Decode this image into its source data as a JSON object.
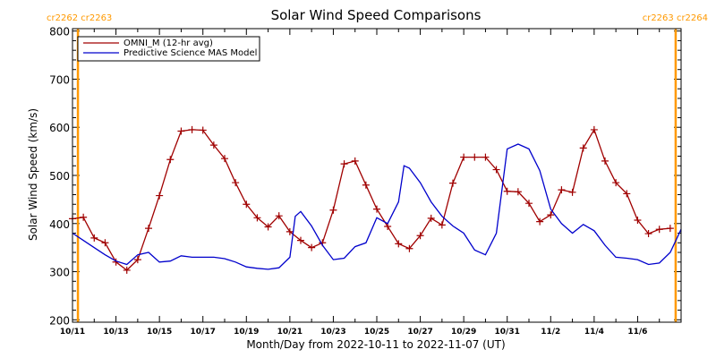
{
  "chart_data": {
    "type": "line",
    "title": "Solar Wind Speed Comparisons",
    "xlabel": "Month/Day from 2022-10-11 to 2022-11-07 (UT)",
    "ylabel": "Solar Wind Speed (km/s)",
    "ylim": [
      195,
      805
    ],
    "xlim": [
      "2022-10-11",
      "2022-11-08"
    ],
    "x_tick_labels": [
      "10/11",
      "10/13",
      "10/15",
      "10/17",
      "10/19",
      "10/21",
      "10/23",
      "10/25",
      "10/27",
      "10/29",
      "10/31",
      "11/2",
      "11/4",
      "11/6"
    ],
    "y_tick_labels": [
      "200",
      "300",
      "400",
      "500",
      "600",
      "700",
      "800"
    ],
    "legend_position": "top-left",
    "carrington_markers": [
      {
        "label": "cr2262 cr2263",
        "date": "2022-10-11T06:00",
        "side": "left",
        "color": "#ff9900"
      },
      {
        "label": "cr2263 cr2264",
        "date": "2022-11-07T18:00",
        "side": "right",
        "color": "#ff9900"
      }
    ],
    "series": [
      {
        "name": "OMNI_M (12-hr avg)",
        "color": "#a00000",
        "marker": "+",
        "x": [
          "2022-10-11T00:00",
          "2022-10-11T12:00",
          "2022-10-12T00:00",
          "2022-10-12T12:00",
          "2022-10-13T00:00",
          "2022-10-13T12:00",
          "2022-10-14T00:00",
          "2022-10-14T12:00",
          "2022-10-15T00:00",
          "2022-10-15T12:00",
          "2022-10-16T00:00",
          "2022-10-16T12:00",
          "2022-10-17T00:00",
          "2022-10-17T12:00",
          "2022-10-18T00:00",
          "2022-10-18T12:00",
          "2022-10-19T00:00",
          "2022-10-19T12:00",
          "2022-10-20T00:00",
          "2022-10-20T12:00",
          "2022-10-21T00:00",
          "2022-10-21T12:00",
          "2022-10-22T00:00",
          "2022-10-22T12:00",
          "2022-10-23T00:00",
          "2022-10-23T12:00",
          "2022-10-24T00:00",
          "2022-10-24T12:00",
          "2022-10-25T00:00",
          "2022-10-25T12:00",
          "2022-10-26T00:00",
          "2022-10-26T12:00",
          "2022-10-27T00:00",
          "2022-10-27T12:00",
          "2022-10-28T00:00",
          "2022-10-28T12:00",
          "2022-10-29T00:00",
          "2022-10-29T12:00",
          "2022-10-30T00:00",
          "2022-10-30T12:00",
          "2022-10-31T00:00",
          "2022-10-31T12:00",
          "2022-11-01T00:00",
          "2022-11-01T12:00",
          "2022-11-02T00:00",
          "2022-11-02T12:00",
          "2022-11-03T00:00",
          "2022-11-03T12:00",
          "2022-11-04T00:00",
          "2022-11-04T12:00",
          "2022-11-05T00:00",
          "2022-11-05T12:00",
          "2022-11-06T00:00",
          "2022-11-06T12:00",
          "2022-11-07T00:00",
          "2022-11-07T12:00"
        ],
        "values": [
          410,
          413,
          370,
          360,
          320,
          303,
          325,
          390,
          458,
          533,
          592,
          595,
          594,
          563,
          535,
          485,
          440,
          412,
          393,
          416,
          383,
          365,
          350,
          360,
          428,
          524,
          530,
          480,
          430,
          394,
          358,
          348,
          375,
          411,
          397,
          484,
          538,
          538,
          538,
          512,
          467,
          466,
          442,
          404,
          418,
          470,
          465,
          557,
          595,
          530,
          485,
          462,
          407,
          379,
          388,
          390
        ]
      },
      {
        "name": "Predictive Science MAS Model",
        "color": "#0000cc",
        "x": [
          "2022-10-11T00:00",
          "2022-10-11T12:00",
          "2022-10-12T00:00",
          "2022-10-12T12:00",
          "2022-10-13T00:00",
          "2022-10-13T12:00",
          "2022-10-14T00:00",
          "2022-10-14T12:00",
          "2022-10-15T00:00",
          "2022-10-15T12:00",
          "2022-10-16T00:00",
          "2022-10-16T12:00",
          "2022-10-17T00:00",
          "2022-10-17T12:00",
          "2022-10-18T00:00",
          "2022-10-18T12:00",
          "2022-10-19T00:00",
          "2022-10-19T12:00",
          "2022-10-20T00:00",
          "2022-10-20T12:00",
          "2022-10-21T00:00",
          "2022-10-21T06:00",
          "2022-10-21T12:00",
          "2022-10-22T00:00",
          "2022-10-22T12:00",
          "2022-10-23T00:00",
          "2022-10-23T12:00",
          "2022-10-24T00:00",
          "2022-10-24T12:00",
          "2022-10-25T00:00",
          "2022-10-25T12:00",
          "2022-10-26T00:00",
          "2022-10-26T06:00",
          "2022-10-26T12:00",
          "2022-10-27T00:00",
          "2022-10-27T12:00",
          "2022-10-28T00:00",
          "2022-10-28T12:00",
          "2022-10-29T00:00",
          "2022-10-29T12:00",
          "2022-10-30T00:00",
          "2022-10-30T12:00",
          "2022-10-31T00:00",
          "2022-10-31T12:00",
          "2022-11-01T00:00",
          "2022-11-01T12:00",
          "2022-11-02T00:00",
          "2022-11-02T12:00",
          "2022-11-03T00:00",
          "2022-11-03T12:00",
          "2022-11-04T00:00",
          "2022-11-04T12:00",
          "2022-11-05T00:00",
          "2022-11-05T12:00",
          "2022-11-06T00:00",
          "2022-11-06T12:00",
          "2022-11-07T00:00",
          "2022-11-07T12:00",
          "2022-11-08T00:00"
        ],
        "values": [
          380,
          365,
          350,
          335,
          322,
          315,
          335,
          340,
          320,
          322,
          333,
          330,
          330,
          330,
          327,
          320,
          310,
          307,
          305,
          308,
          330,
          415,
          425,
          395,
          355,
          325,
          328,
          352,
          360,
          412,
          400,
          445,
          520,
          515,
          485,
          445,
          415,
          395,
          380,
          345,
          335,
          380,
          555,
          565,
          555,
          510,
          430,
          400,
          380,
          398,
          385,
          355,
          330,
          328,
          325,
          315,
          318,
          340,
          388
        ]
      }
    ]
  }
}
